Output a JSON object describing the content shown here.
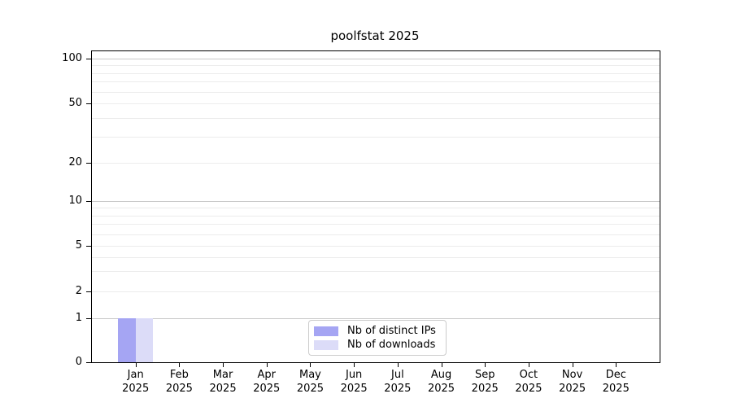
{
  "figure": {
    "title": "poolfstat 2025"
  },
  "chart_data": {
    "type": "bar",
    "title": "poolfstat 2025",
    "categories": [
      "Jan",
      "Feb",
      "Mar",
      "Apr",
      "May",
      "Jun",
      "Jul",
      "Aug",
      "Sep",
      "Oct",
      "Nov",
      "Dec"
    ],
    "category_year": "2025",
    "series": [
      {
        "name": "Nb of distinct IPs",
        "color": "#a5a5f3",
        "values": [
          1,
          0,
          0,
          0,
          0,
          0,
          0,
          0,
          0,
          0,
          0,
          0
        ]
      },
      {
        "name": "Nb of downloads",
        "color": "#dcdcf8",
        "values": [
          1,
          0,
          0,
          0,
          0,
          0,
          0,
          0,
          0,
          0,
          0,
          0
        ]
      }
    ],
    "xlabel": "",
    "ylabel": "",
    "yaxis": {
      "scale": "symlog",
      "ticks": [
        0,
        1,
        2,
        5,
        10,
        20,
        50,
        100
      ],
      "major_gridlines": [
        1,
        10,
        100
      ],
      "minor_gridlines": [
        3,
        4,
        6,
        7,
        8,
        9,
        30,
        40,
        60,
        70,
        80,
        90
      ],
      "range": [
        0,
        110
      ]
    },
    "grid": true,
    "legend_position": "bottom-center"
  },
  "colors": {
    "background": "#ffffff",
    "spine": "#000000",
    "major_grid": "#c8c8c8",
    "minor_grid": "#ececec",
    "bar_distinct_ips": "#a5a5f3",
    "bar_downloads": "#dcdcf8",
    "legend_border": "#cccccc",
    "text": "#000000"
  }
}
